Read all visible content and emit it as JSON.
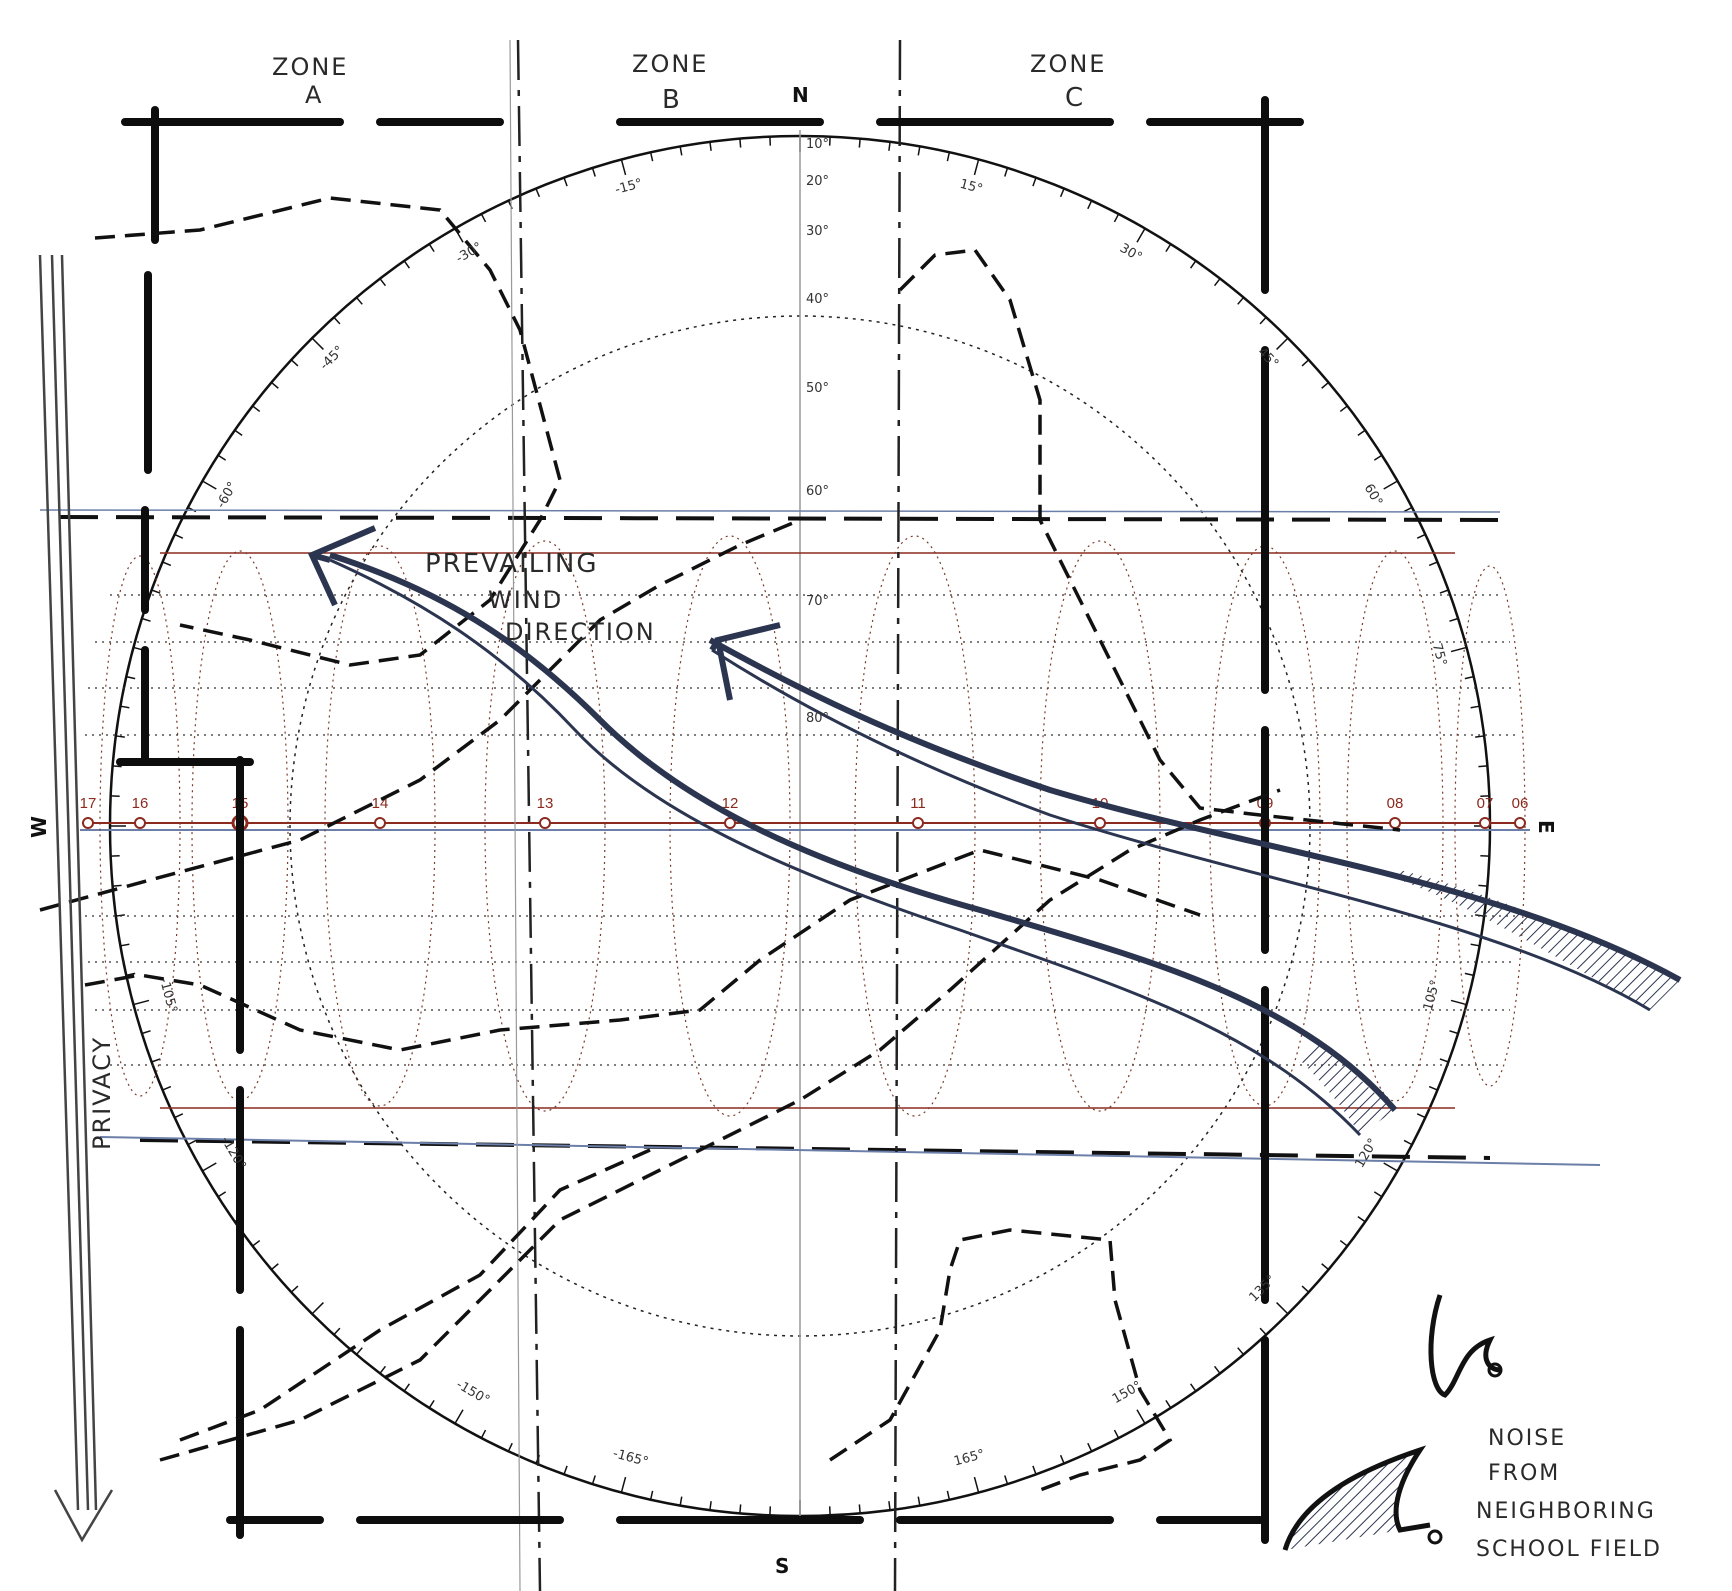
{
  "zones": [
    {
      "line1": "ZONE",
      "line2": "A"
    },
    {
      "line1": "ZONE",
      "line2": "B"
    },
    {
      "line1": "ZONE",
      "line2": "C"
    }
  ],
  "compass": {
    "north": "N",
    "south": "S",
    "east": "E",
    "west": "W"
  },
  "azimuth_labels": [
    "15°",
    "30°",
    "45°",
    "60°",
    "75°",
    "105°",
    "120°",
    "135°",
    "150°",
    "165°",
    "-15°",
    "-30°",
    "-45°",
    "-60°",
    "-105°",
    "-120°",
    "-150°",
    "-165°"
  ],
  "altitude_labels": [
    "10°",
    "20°",
    "30°",
    "40°",
    "50°",
    "60°",
    "70°",
    "80°"
  ],
  "hour_labels": [
    "17",
    "16",
    "15",
    "14",
    "13",
    "12",
    "11",
    "10",
    "09",
    "08",
    "07",
    "06"
  ],
  "annotations": {
    "wind_line1": "PREVAILING",
    "wind_line2": "WIND",
    "wind_line3": "DIRECTION",
    "privacy": "PRIVACY",
    "noise_line1": "NOISE",
    "noise_line2": "FROM",
    "noise_line3": "NEIGHBORING",
    "noise_line4": "SCHOOL FIELD"
  },
  "colors": {
    "ink": "#1a1a1a",
    "sunpath": "#8b2a1e",
    "wind": "#2b3550",
    "blueline": "#6b7fa8"
  }
}
